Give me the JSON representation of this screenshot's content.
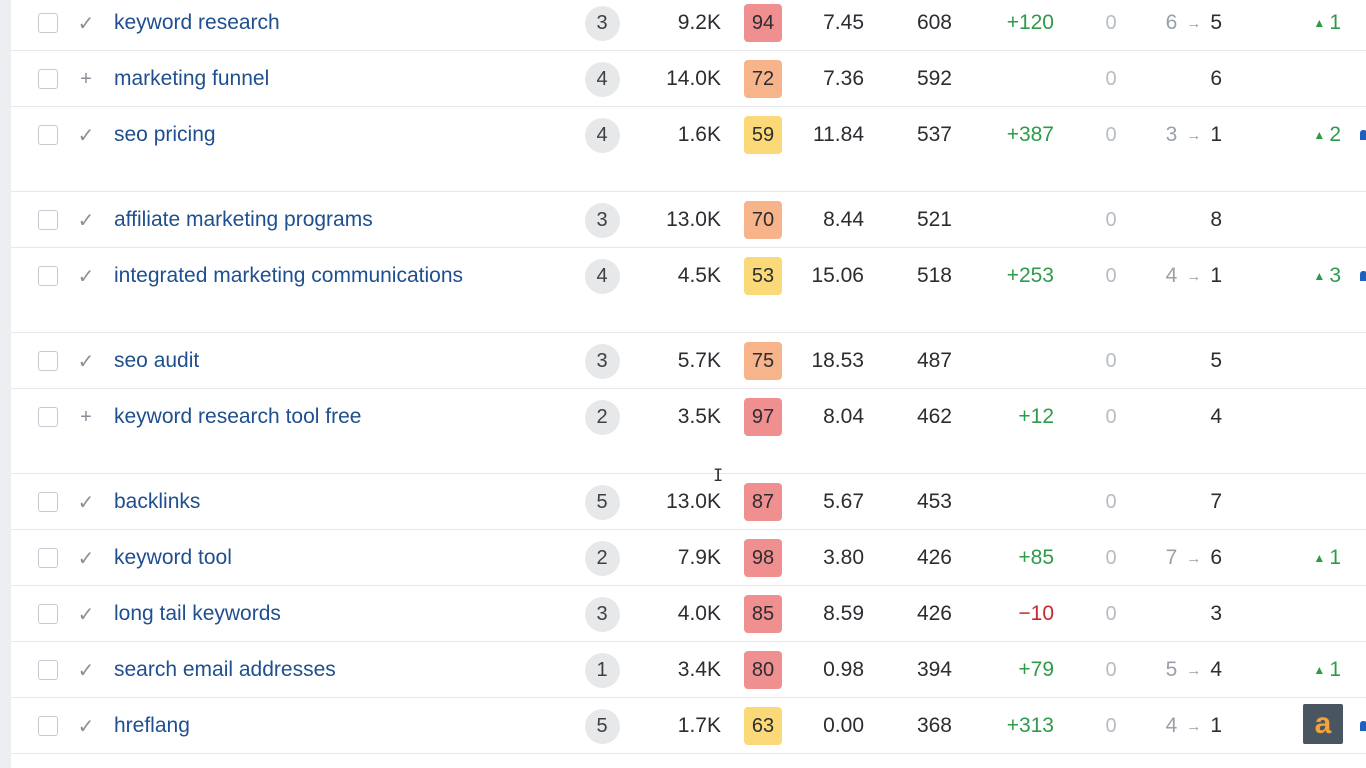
{
  "rows": [
    {
      "keyword": "keyword research",
      "status": "✓",
      "words": "3",
      "volume": "9.2K",
      "kd": "94",
      "kd_color": "#f08f90",
      "cpc": "7.45",
      "traffic": "608",
      "change": "+120",
      "change_color": "#2e9a4b",
      "zero": "0",
      "pos_prev": "6",
      "pos_cur": "5",
      "delta": "1",
      "lock": false,
      "tall": false
    },
    {
      "keyword": "marketing funnel",
      "status": "+",
      "words": "4",
      "volume": "14.0K",
      "kd": "72",
      "kd_color": "#f7b389",
      "cpc": "7.36",
      "traffic": "592",
      "change": "",
      "change_color": "#2e9a4b",
      "zero": "0",
      "pos_prev": "",
      "pos_cur": "6",
      "delta": "",
      "lock": false,
      "tall": false
    },
    {
      "keyword": "seo pricing",
      "status": "✓",
      "words": "4",
      "volume": "1.6K",
      "kd": "59",
      "kd_color": "#fbd979",
      "cpc": "11.84",
      "traffic": "537",
      "change": "+387",
      "change_color": "#2e9a4b",
      "zero": "0",
      "pos_prev": "3",
      "pos_cur": "1",
      "delta": "2",
      "lock": true,
      "tall": true
    },
    {
      "keyword": "affiliate marketing programs",
      "status": "✓",
      "words": "3",
      "volume": "13.0K",
      "kd": "70",
      "kd_color": "#f7b389",
      "cpc": "8.44",
      "traffic": "521",
      "change": "",
      "change_color": "#2e9a4b",
      "zero": "0",
      "pos_prev": "",
      "pos_cur": "8",
      "delta": "",
      "lock": false,
      "tall": false
    },
    {
      "keyword": "integrated marketing communications",
      "status": "✓",
      "words": "4",
      "volume": "4.5K",
      "kd": "53",
      "kd_color": "#fbd979",
      "cpc": "15.06",
      "traffic": "518",
      "change": "+253",
      "change_color": "#2e9a4b",
      "zero": "0",
      "pos_prev": "4",
      "pos_cur": "1",
      "delta": "3",
      "lock": true,
      "tall": true
    },
    {
      "keyword": "seo audit",
      "status": "✓",
      "words": "3",
      "volume": "5.7K",
      "kd": "75",
      "kd_color": "#f7b389",
      "cpc": "18.53",
      "traffic": "487",
      "change": "",
      "change_color": "#2e9a4b",
      "zero": "0",
      "pos_prev": "",
      "pos_cur": "5",
      "delta": "",
      "lock": false,
      "tall": false
    },
    {
      "keyword": "keyword research tool free",
      "status": "+",
      "words": "2",
      "volume": "3.5K",
      "kd": "97",
      "kd_color": "#f08f90",
      "cpc": "8.04",
      "traffic": "462",
      "change": "+12",
      "change_color": "#2e9a4b",
      "zero": "0",
      "pos_prev": "",
      "pos_cur": "4",
      "delta": "",
      "lock": false,
      "tall": true
    },
    {
      "keyword": "backlinks",
      "status": "✓",
      "words": "5",
      "volume": "13.0K",
      "kd": "87",
      "kd_color": "#f08f90",
      "cpc": "5.67",
      "traffic": "453",
      "change": "",
      "change_color": "#2e9a4b",
      "zero": "0",
      "pos_prev": "",
      "pos_cur": "7",
      "delta": "",
      "lock": false,
      "tall": false
    },
    {
      "keyword": "keyword tool",
      "status": "✓",
      "words": "2",
      "volume": "7.9K",
      "kd": "98",
      "kd_color": "#f08f90",
      "cpc": "3.80",
      "traffic": "426",
      "change": "+85",
      "change_color": "#2e9a4b",
      "zero": "0",
      "pos_prev": "7",
      "pos_cur": "6",
      "delta": "1",
      "lock": false,
      "tall": false
    },
    {
      "keyword": "long tail keywords",
      "status": "✓",
      "words": "3",
      "volume": "4.0K",
      "kd": "85",
      "kd_color": "#f08f90",
      "cpc": "8.59",
      "traffic": "426",
      "change": "−10",
      "change_color": "#c62b2b",
      "zero": "0",
      "pos_prev": "",
      "pos_cur": "3",
      "delta": "",
      "lock": false,
      "tall": false
    },
    {
      "keyword": "search email addresses",
      "status": "✓",
      "words": "1",
      "volume": "3.4K",
      "kd": "80",
      "kd_color": "#f08f90",
      "cpc": "0.98",
      "traffic": "394",
      "change": "+79",
      "change_color": "#2e9a4b",
      "zero": "0",
      "pos_prev": "5",
      "pos_cur": "4",
      "delta": "1",
      "lock": false,
      "tall": false
    },
    {
      "keyword": "hreflang",
      "status": "✓",
      "words": "5",
      "volume": "1.7K",
      "kd": "63",
      "kd_color": "#fbd979",
      "cpc": "0.00",
      "traffic": "368",
      "change": "+313",
      "change_color": "#2e9a4b",
      "zero": "0",
      "pos_prev": "4",
      "pos_cur": "1",
      "delta": "",
      "lock": true,
      "tall": false
    }
  ],
  "symbols": {
    "arrow": "→",
    "up_triangle": "▲"
  },
  "cursor_glyph": "I",
  "watermark_glyph": "a"
}
